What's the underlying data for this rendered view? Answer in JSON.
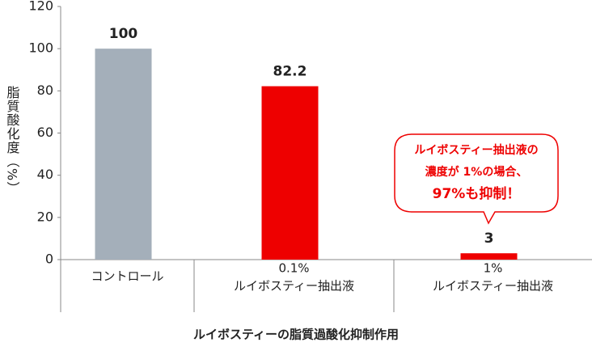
{
  "chart_data": {
    "type": "bar",
    "title": "ルイボスティーの脂質過酸化抑制作用",
    "y_label": "脂質酸化度（%）",
    "categories": [
      [
        "コントロール"
      ],
      [
        "0.1%",
        "ルイボスティー抽出液"
      ],
      [
        "1%",
        "ルイボスティー抽出液"
      ]
    ],
    "values": [
      100,
      82.2,
      3
    ],
    "colors": [
      "#a4afba",
      "#ee0000",
      "#ee0000"
    ],
    "ylim": [
      0,
      120
    ],
    "yticks": [
      0,
      20,
      40,
      60,
      80,
      100,
      120
    ],
    "annotation": [
      "ルイボスティー抽出液の",
      "濃度が 1%の場合、",
      "97%も抑制！"
    ]
  }
}
